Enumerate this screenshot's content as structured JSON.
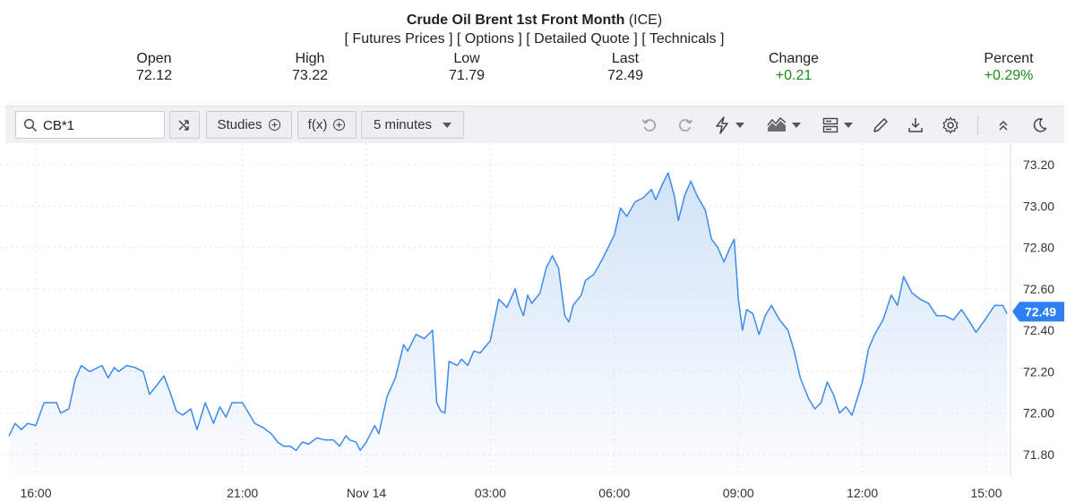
{
  "header": {
    "title": "Crude Oil Brent 1st Front Month",
    "exchange": "(ICE)",
    "links": [
      "[ Futures Prices ]",
      "[ Options ]",
      "[ Detailed Quote ]",
      "[ Technicals ]"
    ]
  },
  "stats": [
    {
      "label": "Open",
      "value": "72.12"
    },
    {
      "label": "High",
      "value": "73.22"
    },
    {
      "label": "Low",
      "value": "71.79"
    },
    {
      "label": "Last",
      "value": "72.49"
    },
    {
      "label": "Change",
      "value": "+0.21"
    },
    {
      "label": "Percent",
      "value": "+0.29%"
    }
  ],
  "toolbar": {
    "symbol": "CB*1",
    "studies_label": "Studies",
    "fx_label": "f(x)",
    "interval_label": "5 minutes",
    "icons": [
      "search-icon",
      "compare-icon",
      "plus-circle-icon",
      "undo-icon",
      "redo-icon",
      "lightning-icon",
      "chart-type-icon",
      "layout-icon",
      "pencil-icon",
      "download-icon",
      "gear-icon",
      "collapse-icon",
      "moon-icon"
    ]
  },
  "colors": {
    "line": "#3d8be8",
    "fill_top": "#cfe2f8",
    "last_badge": "#2f7ff0",
    "positive": "#1a8c1a",
    "grid": "#e3e5e8"
  },
  "chart_data": {
    "type": "area",
    "x_tick_labels": [
      "16:00",
      "21:00",
      "Nov 14",
      "03:00",
      "06:00",
      "09:00",
      "12:00",
      "15:00"
    ],
    "y_tick_labels": [
      "73.20",
      "73.00",
      "72.80",
      "72.60",
      "72.40",
      "72.20",
      "72.00",
      "71.80"
    ],
    "ylim": [
      71.75,
      73.27
    ],
    "last_price_label": "72.49",
    "grid": true,
    "x_ticks_t": [
      0.0,
      5.0,
      8.0,
      11.0,
      14.0,
      17.0,
      20.0,
      23.0
    ],
    "series": [
      {
        "points": [
          [
            -0.65,
            71.89
          ],
          [
            -0.5,
            71.95
          ],
          [
            -0.35,
            71.92
          ],
          [
            -0.2,
            71.95
          ],
          [
            0.0,
            71.94
          ],
          [
            0.2,
            72.05
          ],
          [
            0.5,
            72.05
          ],
          [
            0.6,
            72.0
          ],
          [
            0.8,
            72.02
          ],
          [
            0.95,
            72.16
          ],
          [
            1.1,
            72.23
          ],
          [
            1.3,
            72.2
          ],
          [
            1.6,
            72.23
          ],
          [
            1.75,
            72.17
          ],
          [
            1.9,
            72.22
          ],
          [
            2.0,
            72.2
          ],
          [
            2.2,
            72.23
          ],
          [
            2.4,
            72.22
          ],
          [
            2.6,
            72.2
          ],
          [
            2.75,
            72.09
          ],
          [
            2.95,
            72.14
          ],
          [
            3.1,
            72.18
          ],
          [
            3.25,
            72.1
          ],
          [
            3.4,
            72.01
          ],
          [
            3.55,
            71.99
          ],
          [
            3.75,
            72.02
          ],
          [
            3.9,
            71.92
          ],
          [
            4.1,
            72.05
          ],
          [
            4.3,
            71.95
          ],
          [
            4.45,
            72.03
          ],
          [
            4.6,
            71.98
          ],
          [
            4.75,
            72.05
          ],
          [
            5.0,
            72.05
          ],
          [
            5.15,
            72.0
          ],
          [
            5.3,
            71.95
          ],
          [
            5.5,
            71.93
          ],
          [
            5.7,
            71.9
          ],
          [
            5.85,
            71.86
          ],
          [
            6.0,
            71.84
          ],
          [
            6.15,
            71.84
          ],
          [
            6.3,
            71.82
          ],
          [
            6.45,
            71.86
          ],
          [
            6.6,
            71.85
          ],
          [
            6.8,
            71.88
          ],
          [
            7.0,
            71.87
          ],
          [
            7.2,
            71.87
          ],
          [
            7.35,
            71.84
          ],
          [
            7.5,
            71.89
          ],
          [
            7.6,
            71.87
          ],
          [
            7.75,
            71.86
          ],
          [
            7.85,
            71.82
          ],
          [
            8.0,
            71.86
          ],
          [
            8.2,
            71.94
          ],
          [
            8.3,
            71.9
          ],
          [
            8.5,
            72.08
          ],
          [
            8.7,
            72.17
          ],
          [
            8.9,
            72.33
          ],
          [
            9.0,
            72.3
          ],
          [
            9.2,
            72.38
          ],
          [
            9.4,
            72.36
          ],
          [
            9.6,
            72.4
          ],
          [
            9.7,
            72.05
          ],
          [
            9.8,
            72.01
          ],
          [
            9.9,
            72.0
          ],
          [
            10.0,
            72.25
          ],
          [
            10.2,
            72.23
          ],
          [
            10.3,
            72.26
          ],
          [
            10.45,
            72.23
          ],
          [
            10.6,
            72.3
          ],
          [
            10.75,
            72.29
          ],
          [
            11.0,
            72.35
          ],
          [
            11.2,
            72.55
          ],
          [
            11.4,
            72.51
          ],
          [
            11.6,
            72.6
          ],
          [
            11.7,
            72.52
          ],
          [
            11.8,
            72.47
          ],
          [
            11.9,
            72.57
          ],
          [
            12.0,
            72.53
          ],
          [
            12.2,
            72.58
          ],
          [
            12.35,
            72.7
          ],
          [
            12.5,
            72.76
          ],
          [
            12.65,
            72.7
          ],
          [
            12.8,
            72.47
          ],
          [
            12.9,
            72.44
          ],
          [
            13.0,
            72.52
          ],
          [
            13.2,
            72.57
          ],
          [
            13.3,
            72.64
          ],
          [
            13.5,
            72.67
          ],
          [
            13.7,
            72.74
          ],
          [
            13.85,
            72.8
          ],
          [
            14.0,
            72.86
          ],
          [
            14.15,
            72.99
          ],
          [
            14.3,
            72.95
          ],
          [
            14.5,
            73.02
          ],
          [
            14.7,
            73.04
          ],
          [
            14.9,
            73.08
          ],
          [
            15.0,
            73.03
          ],
          [
            15.15,
            73.1
          ],
          [
            15.3,
            73.16
          ],
          [
            15.45,
            73.05
          ],
          [
            15.55,
            72.93
          ],
          [
            15.7,
            73.05
          ],
          [
            15.85,
            73.12
          ],
          [
            16.0,
            73.05
          ],
          [
            16.2,
            72.98
          ],
          [
            16.35,
            72.84
          ],
          [
            16.5,
            72.8
          ],
          [
            16.65,
            72.73
          ],
          [
            16.8,
            72.8
          ],
          [
            16.9,
            72.84
          ],
          [
            17.0,
            72.55
          ],
          [
            17.1,
            72.4
          ],
          [
            17.2,
            72.5
          ],
          [
            17.35,
            72.48
          ],
          [
            17.5,
            72.38
          ],
          [
            17.65,
            72.47
          ],
          [
            17.8,
            72.52
          ],
          [
            18.0,
            72.45
          ],
          [
            18.2,
            72.4
          ],
          [
            18.35,
            72.3
          ],
          [
            18.5,
            72.17
          ],
          [
            18.7,
            72.07
          ],
          [
            18.85,
            72.02
          ],
          [
            19.0,
            72.05
          ],
          [
            19.15,
            72.15
          ],
          [
            19.3,
            72.09
          ],
          [
            19.45,
            72.0
          ],
          [
            19.6,
            72.03
          ],
          [
            19.75,
            71.99
          ],
          [
            20.0,
            72.15
          ],
          [
            20.15,
            72.31
          ],
          [
            20.3,
            72.38
          ],
          [
            20.5,
            72.45
          ],
          [
            20.7,
            72.57
          ],
          [
            20.85,
            72.52
          ],
          [
            21.0,
            72.66
          ],
          [
            21.2,
            72.58
          ],
          [
            21.4,
            72.55
          ],
          [
            21.6,
            72.53
          ],
          [
            21.8,
            72.47
          ],
          [
            22.0,
            72.47
          ],
          [
            22.2,
            72.45
          ],
          [
            22.4,
            72.5
          ],
          [
            22.6,
            72.44
          ],
          [
            22.75,
            72.39
          ],
          [
            23.0,
            72.46
          ],
          [
            23.2,
            72.52
          ],
          [
            23.4,
            72.52
          ],
          [
            23.5,
            72.48
          ]
        ]
      }
    ]
  }
}
